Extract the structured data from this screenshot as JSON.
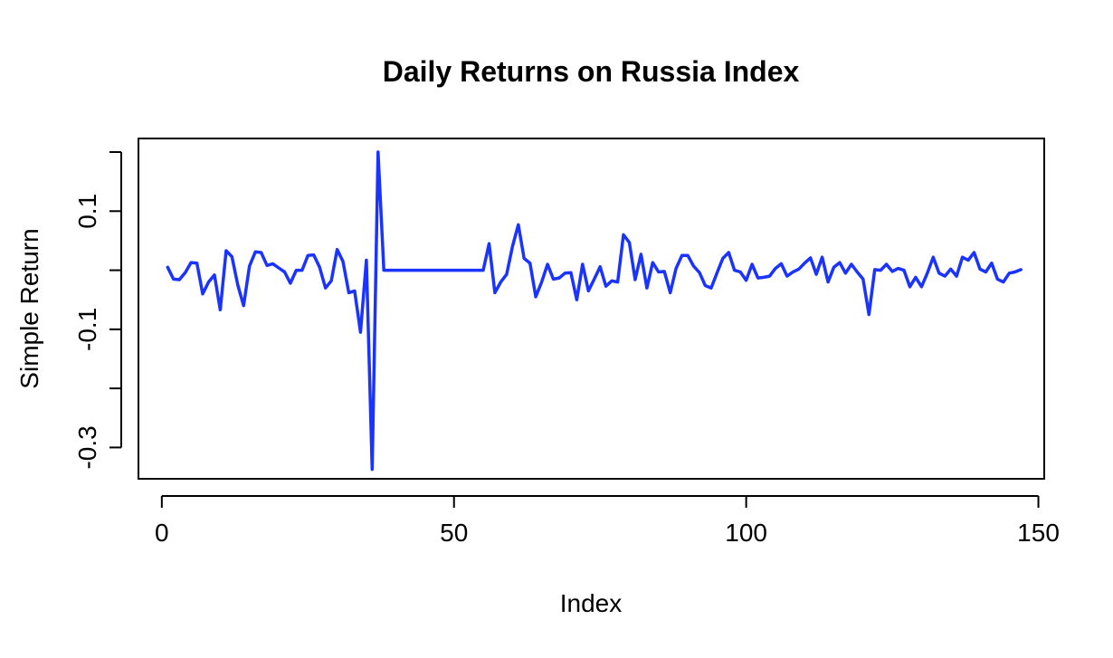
{
  "chart_data": {
    "type": "line",
    "title": "Daily Returns on Russia Index",
    "xlabel": "Index",
    "ylabel": "Simple Return",
    "xlim": [
      -4,
      151
    ],
    "ylim": [
      -0.353,
      0.223
    ],
    "x_ticks": [
      0,
      50,
      100,
      150
    ],
    "x_tick_labels": [
      "0",
      "50",
      "100",
      "150"
    ],
    "y_ticks": [
      -0.3,
      -0.2,
      -0.1,
      0.0,
      0.1,
      0.2
    ],
    "y_tick_labels": [
      "-0.3",
      "",
      "-0.1",
      "",
      "0.1",
      ""
    ],
    "grid": false,
    "legend": "none",
    "line_color": "#1a33ff",
    "series": [
      {
        "x": [
          1,
          2,
          3,
          4,
          5,
          6,
          7,
          8,
          9,
          10,
          11,
          12,
          13,
          14,
          15,
          16,
          17,
          18,
          19,
          20,
          21,
          22,
          23,
          24,
          25,
          26,
          27,
          28,
          29,
          30,
          31,
          32,
          33,
          34,
          35,
          36,
          37,
          38,
          39,
          40,
          41,
          42,
          43,
          44,
          45,
          46,
          47,
          48,
          49,
          50,
          51,
          52,
          53,
          54,
          55,
          56,
          57,
          58,
          59,
          60,
          61,
          62,
          63,
          64,
          65,
          66,
          67,
          68,
          69,
          70,
          71,
          72,
          73,
          74,
          75,
          76,
          77,
          78,
          79,
          80,
          81,
          82,
          83,
          84,
          85,
          86,
          87,
          88,
          89,
          90,
          91,
          92,
          93,
          94,
          95,
          96,
          97,
          98,
          99,
          100,
          101,
          102,
          103,
          104,
          105,
          106,
          107,
          108,
          109,
          110,
          111,
          112,
          113,
          114,
          115,
          116,
          117,
          118,
          119,
          120,
          121,
          122,
          123,
          124,
          125,
          126,
          127,
          128,
          129,
          130,
          131,
          132,
          133,
          134,
          135,
          136,
          137,
          138,
          139,
          140,
          141,
          142,
          143,
          144,
          145,
          146,
          147
        ],
        "y": [
          0.005,
          -0.015,
          -0.016,
          -0.004,
          0.013,
          0.012,
          -0.04,
          -0.02,
          -0.008,
          -0.067,
          0.033,
          0.023,
          -0.025,
          -0.06,
          0.007,
          0.031,
          0.03,
          0.008,
          0.011,
          0.004,
          -0.003,
          -0.022,
          0.0,
          0.0,
          0.025,
          0.026,
          0.005,
          -0.03,
          -0.018,
          0.035,
          0.015,
          -0.038,
          -0.035,
          -0.105,
          0.017,
          -0.337,
          0.2,
          0.0,
          0.0,
          0.0,
          0.0,
          0.0,
          0.0,
          0.0,
          0.0,
          0.0,
          0.0,
          0.0,
          0.0,
          0.0,
          0.0,
          0.0,
          0.0,
          0.0,
          0.0,
          0.045,
          -0.038,
          -0.02,
          -0.007,
          0.04,
          0.077,
          0.02,
          0.012,
          -0.045,
          -0.02,
          0.01,
          -0.015,
          -0.013,
          -0.005,
          -0.004,
          -0.05,
          0.01,
          -0.035,
          -0.015,
          0.006,
          -0.027,
          -0.018,
          -0.02,
          0.06,
          0.047,
          -0.016,
          0.027,
          -0.03,
          0.013,
          -0.003,
          -0.002,
          -0.038,
          0.003,
          0.025,
          0.025,
          0.007,
          -0.004,
          -0.026,
          -0.03,
          -0.005,
          0.02,
          0.03,
          0.0,
          -0.003,
          -0.017,
          0.01,
          -0.013,
          -0.012,
          -0.01,
          0.003,
          0.011,
          -0.01,
          -0.003,
          0.002,
          0.012,
          0.021,
          -0.007,
          0.022,
          -0.02,
          0.005,
          0.013,
          -0.005,
          0.01,
          -0.003,
          -0.015,
          -0.075,
          0.001,
          0.0,
          0.01,
          -0.002,
          0.003,
          0.0,
          -0.028,
          -0.012,
          -0.028,
          -0.005,
          0.022,
          -0.005,
          -0.01,
          0.002,
          -0.01,
          0.022,
          0.017,
          0.03,
          0.002,
          -0.003,
          0.012,
          -0.015,
          -0.02,
          -0.005,
          -0.003,
          0.001
        ]
      }
    ]
  }
}
